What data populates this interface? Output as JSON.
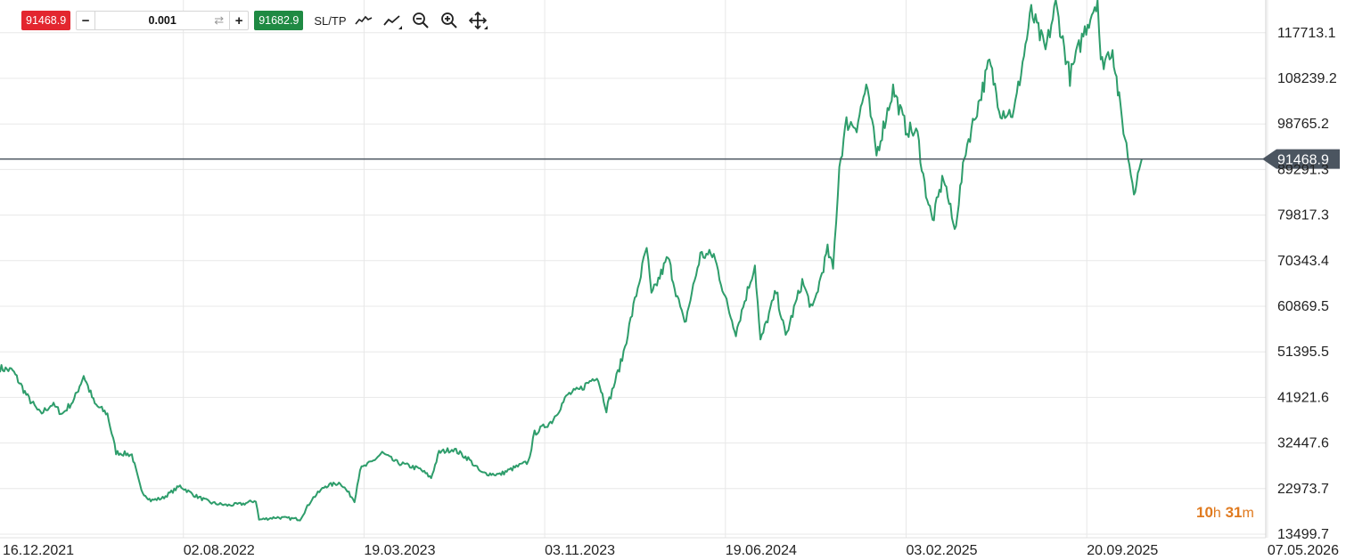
{
  "toolbar": {
    "sell_price": "91468.9",
    "quantity": "0.001",
    "minus_label": "−",
    "plus_label": "+",
    "buy_price": "91682.9",
    "sltp_label": "SL/TP"
  },
  "timer": {
    "hours": "10",
    "hours_unit": "h",
    "minutes": "31",
    "minutes_unit": "m"
  },
  "colors": {
    "line": "#2e9d6b",
    "sell": "#e3262f",
    "buy": "#1f8a43",
    "grid": "#e8e8e8",
    "price_marker": "#4b5560"
  },
  "chart_data": {
    "type": "line",
    "current_price": 91468.9,
    "current_price_label": "91468.9",
    "x_tick_labels": [
      "16.12.2021",
      "02.08.2022",
      "19.03.2023",
      "03.11.2023",
      "19.06.2024",
      "03.02.2025",
      "20.09.2025",
      "07.05.2026"
    ],
    "y_tick_labels": [
      "117713.1",
      "108239.2",
      "98765.2",
      "89291.3",
      "79817.3",
      "70343.4",
      "60869.5",
      "51395.5",
      "41921.6",
      "32447.6",
      "22973.7",
      "13499.7"
    ],
    "x_range": [
      "2021-12-16",
      "2026-05-07"
    ],
    "y_range": [
      13499.7,
      123000
    ],
    "grid": true,
    "series": [
      {
        "values": [
          [
            "2021-12-16",
            48000
          ],
          [
            "2022-01-01",
            47500
          ],
          [
            "2022-01-20",
            42000
          ],
          [
            "2022-02-05",
            38500
          ],
          [
            "2022-02-20",
            40500
          ],
          [
            "2022-03-05",
            38500
          ],
          [
            "2022-03-20",
            41500
          ],
          [
            "2022-04-01",
            46500
          ],
          [
            "2022-04-15",
            40500
          ],
          [
            "2022-05-01",
            38500
          ],
          [
            "2022-05-12",
            30500
          ],
          [
            "2022-06-01",
            30000
          ],
          [
            "2022-06-13",
            22500
          ],
          [
            "2022-06-25",
            20500
          ],
          [
            "2022-07-10",
            21000
          ],
          [
            "2022-08-01",
            23500
          ],
          [
            "2022-08-20",
            21500
          ],
          [
            "2022-09-10",
            20000
          ],
          [
            "2022-09-30",
            19500
          ],
          [
            "2022-10-20",
            19800
          ],
          [
            "2022-11-05",
            20500
          ],
          [
            "2022-11-09",
            16500
          ],
          [
            "2022-12-01",
            17000
          ],
          [
            "2022-12-31",
            16600
          ],
          [
            "2023-01-15",
            20800
          ],
          [
            "2023-02-01",
            23500
          ],
          [
            "2023-02-20",
            24200
          ],
          [
            "2023-03-10",
            20500
          ],
          [
            "2023-03-17",
            27000
          ],
          [
            "2023-04-01",
            28500
          ],
          [
            "2023-04-14",
            30400
          ],
          [
            "2023-05-01",
            28500
          ],
          [
            "2023-06-01",
            27000
          ],
          [
            "2023-06-15",
            25200
          ],
          [
            "2023-06-25",
            30500
          ],
          [
            "2023-07-13",
            31200
          ],
          [
            "2023-08-01",
            29200
          ],
          [
            "2023-08-18",
            26200
          ],
          [
            "2023-09-10",
            25900
          ],
          [
            "2023-10-01",
            27500
          ],
          [
            "2023-10-16",
            28500
          ],
          [
            "2023-10-24",
            34500
          ],
          [
            "2023-11-15",
            37000
          ],
          [
            "2023-12-05",
            42500
          ],
          [
            "2023-12-20",
            43500
          ],
          [
            "2024-01-11",
            46500
          ],
          [
            "2024-01-23",
            39500
          ],
          [
            "2024-02-12",
            50000
          ],
          [
            "2024-02-28",
            62000
          ],
          [
            "2024-03-14",
            73000
          ],
          [
            "2024-03-20",
            63000
          ],
          [
            "2024-04-10",
            71000
          ],
          [
            "2024-04-20",
            64000
          ],
          [
            "2024-05-01",
            57000
          ],
          [
            "2024-05-21",
            71500
          ],
          [
            "2024-06-07",
            71500
          ],
          [
            "2024-06-25",
            60500
          ],
          [
            "2024-07-05",
            55500
          ],
          [
            "2024-07-29",
            69500
          ],
          [
            "2024-08-05",
            53500
          ],
          [
            "2024-08-25",
            64000
          ],
          [
            "2024-09-06",
            54500
          ],
          [
            "2024-09-27",
            66000
          ],
          [
            "2024-10-10",
            60000
          ],
          [
            "2024-10-29",
            72500
          ],
          [
            "2024-11-05",
            68500
          ],
          [
            "2024-11-13",
            90000
          ],
          [
            "2024-11-22",
            99000
          ],
          [
            "2024-12-05",
            98500
          ],
          [
            "2024-12-17",
            106500
          ],
          [
            "2024-12-30",
            92500
          ],
          [
            "2025-01-20",
            106000
          ],
          [
            "2025-02-05",
            98000
          ],
          [
            "2025-02-20",
            96500
          ],
          [
            "2025-03-01",
            86000
          ],
          [
            "2025-03-11",
            78500
          ],
          [
            "2025-03-25",
            88000
          ],
          [
            "2025-04-08",
            76500
          ],
          [
            "2025-04-22",
            93500
          ],
          [
            "2025-05-10",
            104000
          ],
          [
            "2025-05-22",
            111500
          ],
          [
            "2025-06-05",
            101500
          ],
          [
            "2025-06-22",
            101000
          ],
          [
            "2025-07-14",
            122000
          ],
          [
            "2025-08-01",
            114000
          ],
          [
            "2025-08-14",
            123500
          ],
          [
            "2025-09-01",
            108500
          ],
          [
            "2025-09-18",
            117500
          ],
          [
            "2025-10-06",
            125000
          ],
          [
            "2025-10-10",
            111000
          ],
          [
            "2025-10-25",
            114500
          ],
          [
            "2025-11-04",
            101500
          ],
          [
            "2025-11-21",
            85000
          ],
          [
            "2025-12-01",
            91468.9
          ]
        ]
      }
    ]
  }
}
